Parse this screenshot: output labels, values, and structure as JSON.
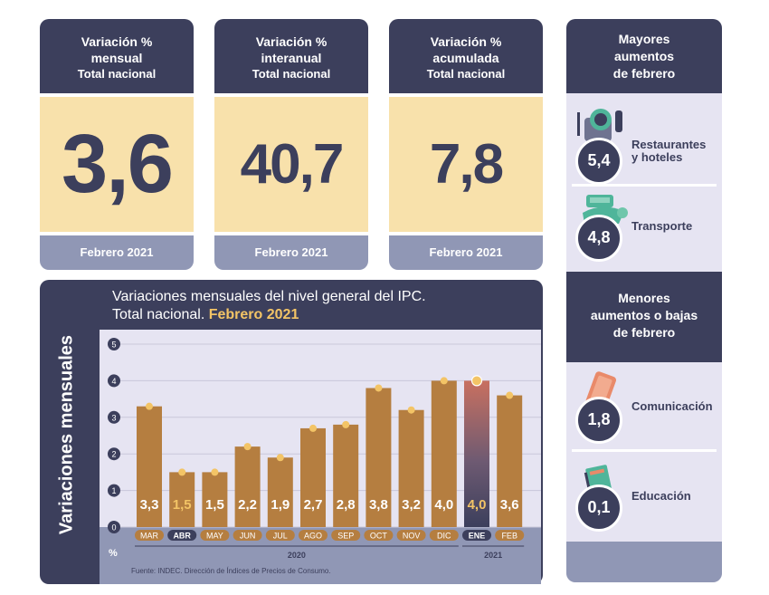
{
  "kpis": [
    {
      "head": "Variación %",
      "head2": "mensual",
      "sub": "Total nacional",
      "value": "3,6",
      "foot": "Febrero 2021"
    },
    {
      "head": "Variación %",
      "head2": "interanual",
      "sub": "Total nacional",
      "value": "40,7",
      "foot": "Febrero 2021"
    },
    {
      "head": "Variación %",
      "head2": "acumulada",
      "sub": "Total nacional",
      "value": "7,8",
      "foot": "Febrero 2021"
    }
  ],
  "side": {
    "top_title_1": "Mayores",
    "top_title_2": "aumentos",
    "top_title_3": "de febrero",
    "top_items": [
      {
        "label1": "Restaurantes",
        "label2": "y hoteles",
        "value": "5,4",
        "icon": "restaurant-icon"
      },
      {
        "label1": "Transporte",
        "label2": "",
        "value": "4,8",
        "icon": "transport-icon"
      }
    ],
    "bottom_title_1": "Menores",
    "bottom_title_2": "aumentos o bajas",
    "bottom_title_3": "de febrero",
    "bottom_items": [
      {
        "label1": "Comunicación",
        "label2": "",
        "value": "1,8",
        "icon": "phone-icon"
      },
      {
        "label1": "Educación",
        "label2": "",
        "value": "0,1",
        "icon": "book-icon"
      }
    ]
  },
  "chart": {
    "side_title": "Variaciones mensuales",
    "title_line1": "Variaciones mensuales del nivel general del IPC.",
    "title_line2": "Total nacional. ",
    "title_highlight": "Febrero 2021",
    "source": "Fuente: INDEC. Dirección de Índices de Precios de Consumo.",
    "unit_label": "%",
    "year_labels": [
      "2020",
      "2021"
    ]
  },
  "colors": {
    "navy": "#3c3f5c",
    "cream": "#f8e1ab",
    "bar": "#b57e40",
    "dot": "#f3c466",
    "slate": "#9097b5",
    "plot_bg": "#e6e4f2"
  },
  "chart_data": {
    "type": "bar",
    "categories": [
      "MAR",
      "ABR",
      "MAY",
      "JUN",
      "JUL",
      "AGO",
      "SEP",
      "OCT",
      "NOV",
      "DIC",
      "ENE",
      "FEB"
    ],
    "values": [
      3.3,
      1.5,
      1.5,
      2.2,
      1.9,
      2.7,
      2.8,
      3.8,
      3.2,
      4.0,
      4.0,
      3.6
    ],
    "value_labels": [
      "3,3",
      "1,5",
      "1,5",
      "2,2",
      "1,9",
      "2,7",
      "2,8",
      "3,8",
      "3,2",
      "4,0",
      "4,0",
      "3,6"
    ],
    "highlighted_labels": [
      "ABR",
      "ENE"
    ],
    "highlighted_values": [
      "1,5",
      "4,0"
    ],
    "yticks": [
      0,
      1,
      2,
      3,
      4,
      5
    ],
    "ylim": [
      0,
      5
    ],
    "grid": true,
    "ylabel": "%"
  }
}
